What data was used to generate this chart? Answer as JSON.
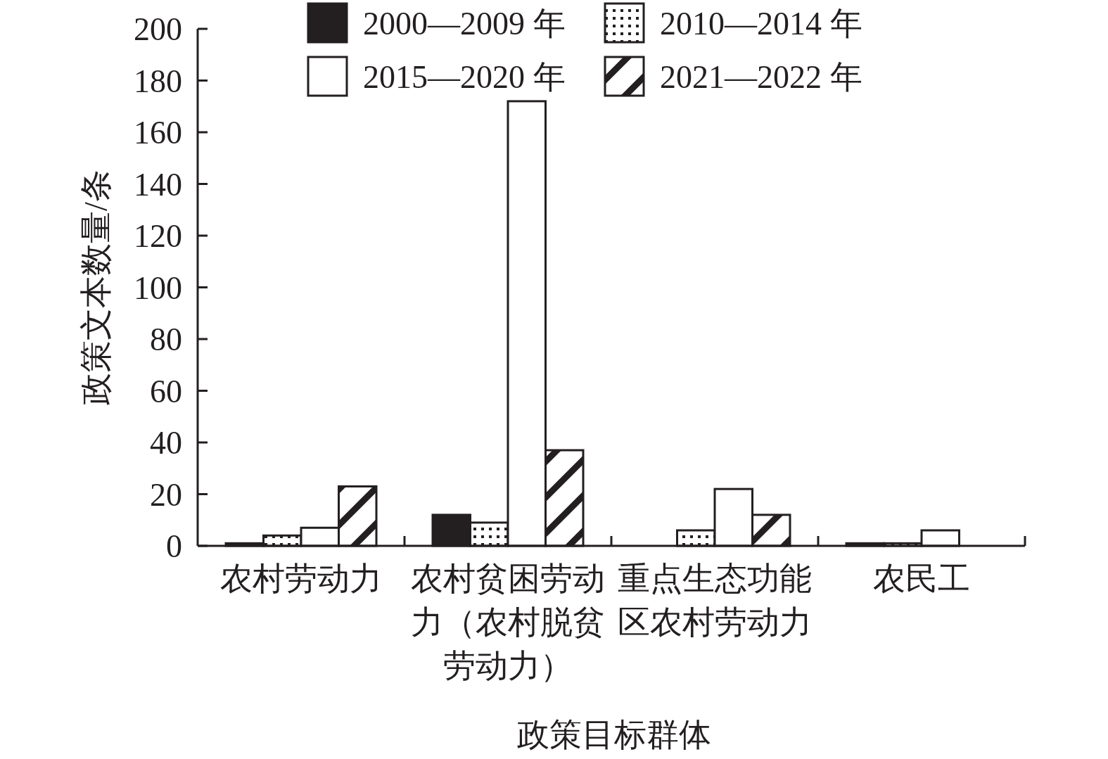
{
  "chart_data": {
    "type": "bar",
    "xlabel": "政策目标群体",
    "ylabel": "政策文本数量/条",
    "categories": [
      "农村劳动力",
      "农村贫困劳动力（农村脱贫劳动力）",
      "重点生态功能区农村劳动力",
      "农民工"
    ],
    "series": [
      {
        "name": "2000—2009 年",
        "color": "#231f20",
        "values": [
          1,
          12,
          0,
          1
        ]
      },
      {
        "name": "2010—2014 年",
        "color": "#231f20",
        "values": [
          4,
          9,
          6,
          1
        ]
      },
      {
        "name": "2015—2020 年",
        "color": "#ffffff",
        "values": [
          7,
          172,
          22,
          6
        ]
      },
      {
        "name": "2021—2022 年",
        "color": "#231f20",
        "values": [
          23,
          37,
          12,
          0
        ]
      }
    ],
    "ylim": [
      0,
      200
    ],
    "yticks": [
      0,
      20,
      40,
      60,
      80,
      100,
      120,
      140,
      160,
      180,
      200
    ],
    "grid": false,
    "legend": "top"
  }
}
